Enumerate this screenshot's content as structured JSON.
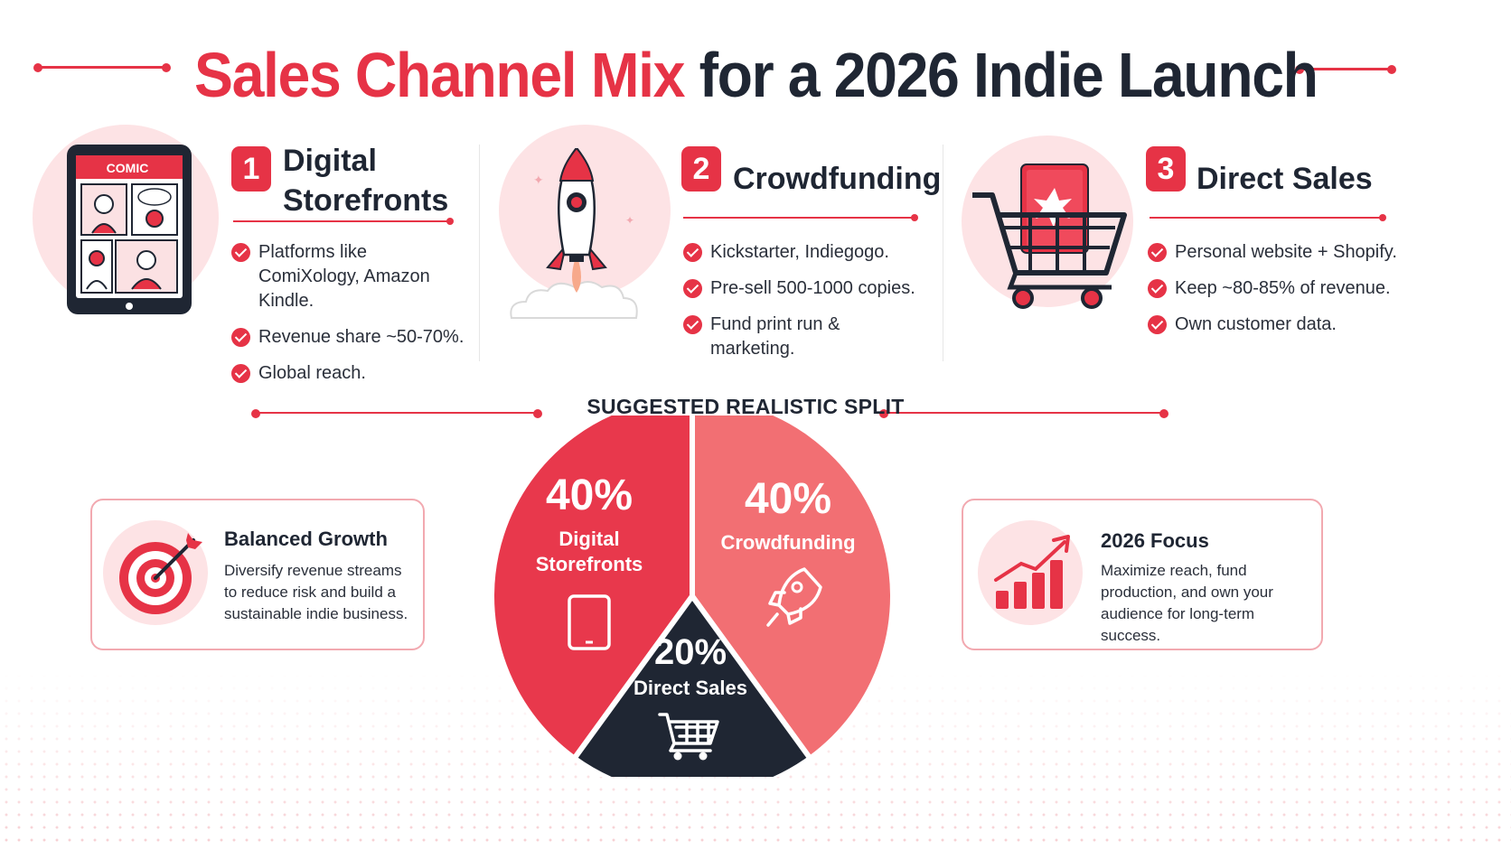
{
  "title": {
    "part1": "Sales Channel Mix",
    "part2": "for a 2026 Indie Launch"
  },
  "channels": [
    {
      "number": "1",
      "title_line1": "Digital",
      "title_line2": "Storefronts",
      "illustration_label": "COMIC",
      "bullets": [
        [
          "Platforms like",
          "ComiXology, Amazon Kindle."
        ],
        [
          "Revenue share ~50-70%."
        ],
        [
          "Global reach."
        ]
      ]
    },
    {
      "number": "2",
      "title_line1": "Crowdfunding",
      "bullets": [
        [
          "Kickstarter, Indiegogo."
        ],
        [
          "Pre-sell 500-1000 copies."
        ],
        [
          "Fund print run &",
          "marketing."
        ]
      ]
    },
    {
      "number": "3",
      "title_line1": "Direct Sales",
      "bullets": [
        [
          "Personal website + Shopify."
        ],
        [
          "Keep ~80-85% of revenue."
        ],
        [
          "Own customer data."
        ]
      ]
    }
  ],
  "split_title": "SUGGESTED REALISTIC SPLIT",
  "left_card": {
    "title": "Balanced Growth",
    "body": [
      "Diversify revenue streams",
      "to reduce risk and build a",
      "sustainable indie business."
    ],
    "icon": "target-icon"
  },
  "right_card": {
    "title": "2026 Focus",
    "body": [
      "Maximize reach, fund",
      "production, and own your",
      "audience for long-term success."
    ],
    "icon": "growth-chart-icon"
  },
  "colors": {
    "accent": "#e63346",
    "slice_digital": "#e8384c",
    "slice_crowdfunding": "#f26f73",
    "slice_direct": "#1f2633",
    "soft_bg": "#fde3e5"
  },
  "chart_data": {
    "type": "pie",
    "title": "SUGGESTED REALISTIC SPLIT",
    "slices": [
      {
        "label_lines": [
          "Digital",
          "Storefronts"
        ],
        "value": 40,
        "value_label": "40%",
        "icon": "tablet-icon"
      },
      {
        "label_lines": [
          "Crowdfunding"
        ],
        "value": 40,
        "value_label": "40%",
        "icon": "rocket-icon"
      },
      {
        "label_lines": [
          "Direct Sales"
        ],
        "value": 20,
        "value_label": "20%",
        "icon": "cart-icon"
      }
    ]
  }
}
